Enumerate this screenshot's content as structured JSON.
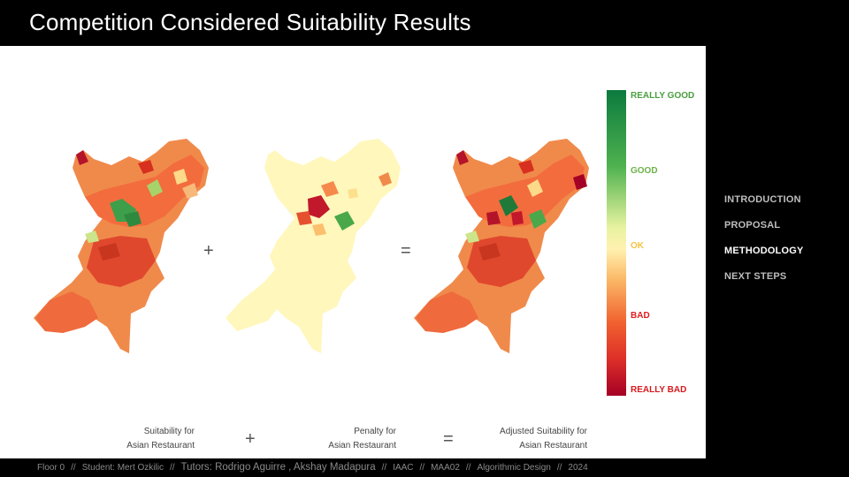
{
  "title": "Competition Considered Suitability Results",
  "operators": {
    "plus": "+",
    "equals": "="
  },
  "legend": {
    "really_good": "REALLY GOOD",
    "good": "GOOD",
    "ok": "OK",
    "bad": "BAD",
    "really_bad": "REALLY BAD"
  },
  "colors": {
    "really_good": "#1a9850",
    "good": "#66bd63",
    "ok": "#d9ef8b",
    "ok_label": "#f5c341",
    "bad": "#e31a1c",
    "really_bad": "#d7191c",
    "panel_bg": "#ffffff",
    "slide_bg": "#000000"
  },
  "captions": {
    "suitability_line1": "Suitability for",
    "suitability_line2": "Asian Restaurant",
    "penalty_line1": "Penalty for",
    "penalty_line2": "Asian Restaurant",
    "adjusted_line1": "Adjusted Suitability for",
    "adjusted_line2": "Asian Restaurant"
  },
  "nav": [
    {
      "label": "INTRODUCTION",
      "active": false
    },
    {
      "label": "PROPOSAL",
      "active": false
    },
    {
      "label": "METHODOLOGY",
      "active": true
    },
    {
      "label": "NEXT STEPS",
      "active": false
    }
  ],
  "footer": {
    "floor": "Floor 0",
    "student": "Student: Mert Ozkilic",
    "tutors": "Tutors: Rodrigo Aguirre , Akshay Madapura",
    "school": "IAAC",
    "program": "MAA02",
    "course": "Algorithmic Design",
    "year": "2024",
    "separator": "//"
  },
  "maps": [
    "suitability-map",
    "penalty-map",
    "adjusted-suitability-map"
  ]
}
